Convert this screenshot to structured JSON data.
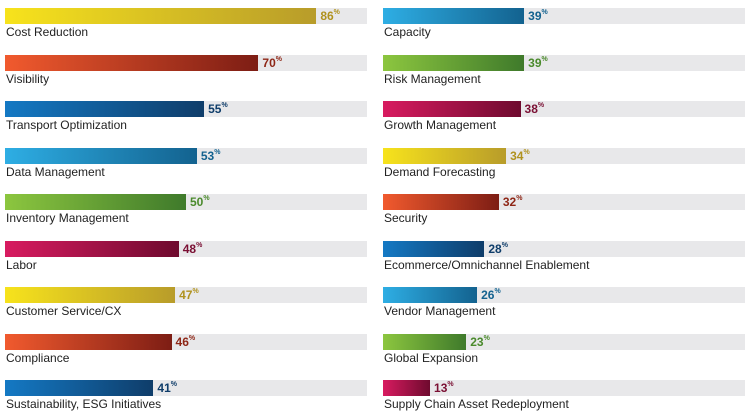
{
  "chart_data": {
    "type": "bar",
    "orientation": "horizontal",
    "value_suffix": "%",
    "xlim": [
      0,
      100
    ],
    "grid": false,
    "columns": [
      {
        "categories": [
          "Cost Reduction",
          "Visibility",
          "Transport Optimization",
          "Data Management",
          "Inventory Management",
          "Labor",
          "Customer Service/CX",
          "Compliance",
          "Sustainability, ESG Initiatives"
        ],
        "values": [
          86,
          70,
          55,
          53,
          50,
          48,
          47,
          46,
          41
        ],
        "palettes": [
          "yellow",
          "orange",
          "blue",
          "sky",
          "green",
          "magenta",
          "yellow",
          "orange",
          "blue"
        ]
      },
      {
        "categories": [
          "Capacity",
          "Risk Management",
          "Growth Management",
          "Demand Forecasting",
          "Security",
          "Ecommerce/Omnichannel Enablement",
          "Vendor Management",
          "Global Expansion",
          "Supply Chain Asset Redeployment"
        ],
        "values": [
          39,
          39,
          38,
          34,
          32,
          28,
          26,
          23,
          13
        ],
        "palettes": [
          "sky",
          "green",
          "magenta",
          "yellow",
          "orange",
          "blue",
          "sky",
          "green",
          "magenta"
        ]
      }
    ],
    "colors": {
      "yellow": {
        "start": "#f7e31c",
        "end": "#b89c2a",
        "text": "#b0921e"
      },
      "orange": {
        "start": "#f15a2e",
        "end": "#7d1d14",
        "text": "#8e2616"
      },
      "blue": {
        "start": "#1479c4",
        "end": "#0f3d6a",
        "text": "#0f3d6a"
      },
      "sky": {
        "start": "#2eaee4",
        "end": "#13628f",
        "text": "#13628f"
      },
      "green": {
        "start": "#8cc63f",
        "end": "#3f7a2b",
        "text": "#4a8a2c"
      },
      "magenta": {
        "start": "#d81b60",
        "end": "#6e0a2e",
        "text": "#7a0f33"
      }
    },
    "track_color": "#e8e8ea"
  }
}
